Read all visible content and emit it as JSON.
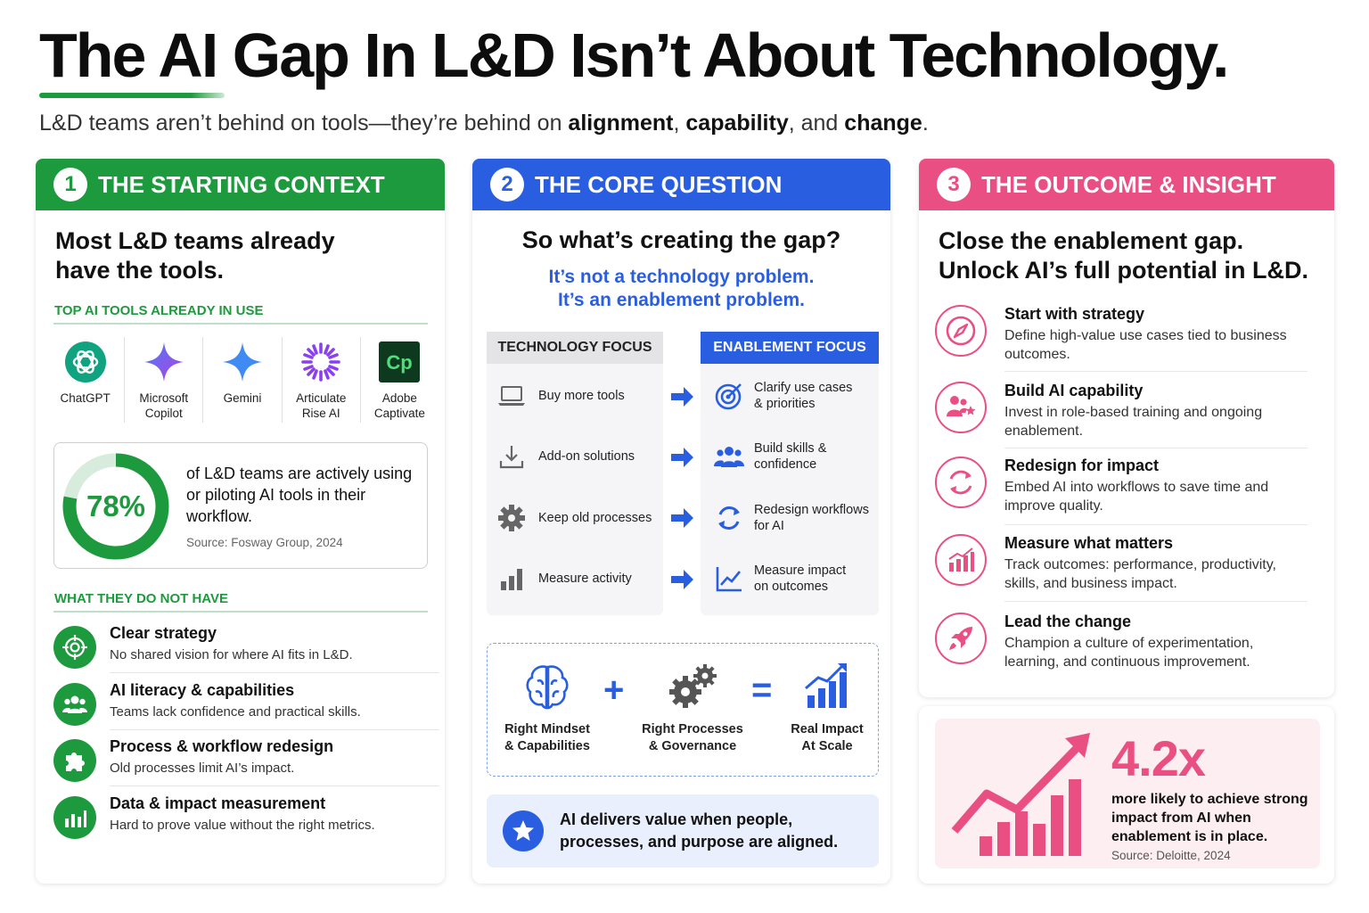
{
  "title": "The AI Gap In L&D Isn’t About Technology.",
  "subtitle": {
    "prefix": "L&D teams aren’t behind on tools—they’re behind on ",
    "bold1": "alignment",
    "sep1": ", ",
    "bold2": "capability",
    "sep2": ", and ",
    "bold3": "change",
    "end": "."
  },
  "colors": {
    "green": "#1e9a3e",
    "blue": "#2a5ee0",
    "pink": "#ea4f84"
  },
  "col1": {
    "number": "1",
    "header": "THE STARTING CONTEXT",
    "heading_line1": "Most L&D teams already",
    "heading_line2": "have the tools.",
    "tools_label": "TOP AI TOOLS ALREADY IN USE",
    "tools": [
      {
        "line1": "ChatGPT",
        "line2": "",
        "icon": "chatgpt-logo"
      },
      {
        "line1": "Microsoft",
        "line2": "Copilot",
        "icon": "copilot-sparkle"
      },
      {
        "line1": "Gemini",
        "line2": "",
        "icon": "gemini-sparkle"
      },
      {
        "line1": "Articulate",
        "line2": "Rise AI",
        "icon": "articulate-burst"
      },
      {
        "line1": "Adobe",
        "line2": "Captivate",
        "icon": "captivate-logo"
      }
    ],
    "stat": {
      "value": "78%",
      "fraction": 0.78,
      "text": "of L&D teams are actively using or piloting AI tools in their workflow.",
      "source": "Source: Fosway Group, 2024"
    },
    "gaps_label": "WHAT THEY DO NOT HAVE",
    "gaps": [
      {
        "title": "Clear strategy",
        "desc": "No shared vision for where AI fits in L&D.",
        "icon": "target-icon"
      },
      {
        "title": "AI literacy & capabilities",
        "desc": "Teams lack confidence and practical skills.",
        "icon": "people-icon"
      },
      {
        "title": "Process & workflow redesign",
        "desc": "Old processes limit AI’s impact.",
        "icon": "puzzle-icon"
      },
      {
        "title": "Data & impact measurement",
        "desc": "Hard to prove value without the right metrics.",
        "icon": "bar-chart-icon"
      }
    ]
  },
  "col2": {
    "number": "2",
    "header": "THE CORE QUESTION",
    "heading": "So what’s creating the gap?",
    "sub_line1": "It’s not a technology problem.",
    "sub_line2": "It’s an enablement problem.",
    "tech_header": "TECHNOLOGY FOCUS",
    "enable_header": "ENABLEMENT FOCUS",
    "tech_items": [
      {
        "line1": "Buy more tools",
        "line2": "",
        "icon": "laptop-icon"
      },
      {
        "line1": "Add-on solutions",
        "line2": "",
        "icon": "download-icon"
      },
      {
        "line1": "Keep old processes",
        "line2": "",
        "icon": "gear-icon"
      },
      {
        "line1": "Measure activity",
        "line2": "",
        "icon": "bar-chart-icon"
      }
    ],
    "enable_items": [
      {
        "line1": "Clarify use cases",
        "line2": "& priorities",
        "icon": "target-icon"
      },
      {
        "line1": "Build skills &",
        "line2": "confidence",
        "icon": "people-icon"
      },
      {
        "line1": "Redesign workflows",
        "line2": "for AI",
        "icon": "cycle-icon"
      },
      {
        "line1": "Measure impact",
        "line2": "on outcomes",
        "icon": "line-chart-icon"
      }
    ],
    "equation": [
      {
        "line1": "Right Mindset",
        "line2": "& Capabilities",
        "icon": "brain-icon"
      },
      {
        "line1": "Right Processes",
        "line2": "& Governance",
        "icon": "gears-icon"
      },
      {
        "line1": "Real Impact",
        "line2": "At Scale",
        "icon": "growth-chart-icon"
      }
    ],
    "op_plus": "+",
    "op_equals": "=",
    "banner_text": "AI delivers value when people, processes, and purpose are aligned."
  },
  "col3": {
    "number": "3",
    "header": "THE OUTCOME & INSIGHT",
    "heading_line1": "Close the enablement gap.",
    "heading_line2": "Unlock AI’s full potential in L&D.",
    "items": [
      {
        "title": "Start with strategy",
        "desc": "Define high-value use cases tied to business outcomes.",
        "icon": "compass-icon"
      },
      {
        "title": "Build AI capability",
        "desc": "Invest in role-based training and ongoing enablement.",
        "icon": "people-star-icon"
      },
      {
        "title": "Redesign for impact",
        "desc": "Embed AI into workflows to save time and improve quality.",
        "icon": "cycle-icon"
      },
      {
        "title": "Measure what matters",
        "desc": "Track outcomes: performance, productivity, skills, and business impact.",
        "icon": "bar-chart-icon"
      },
      {
        "title": "Lead the change",
        "desc": "Champion a culture of experimentation, learning, and continuous improvement.",
        "icon": "rocket-icon"
      }
    ],
    "stat": {
      "value": "4.2x",
      "text": "more likely to achieve strong impact from AI when enablement is in place.",
      "source": "Source: Deloitte, 2024"
    }
  }
}
